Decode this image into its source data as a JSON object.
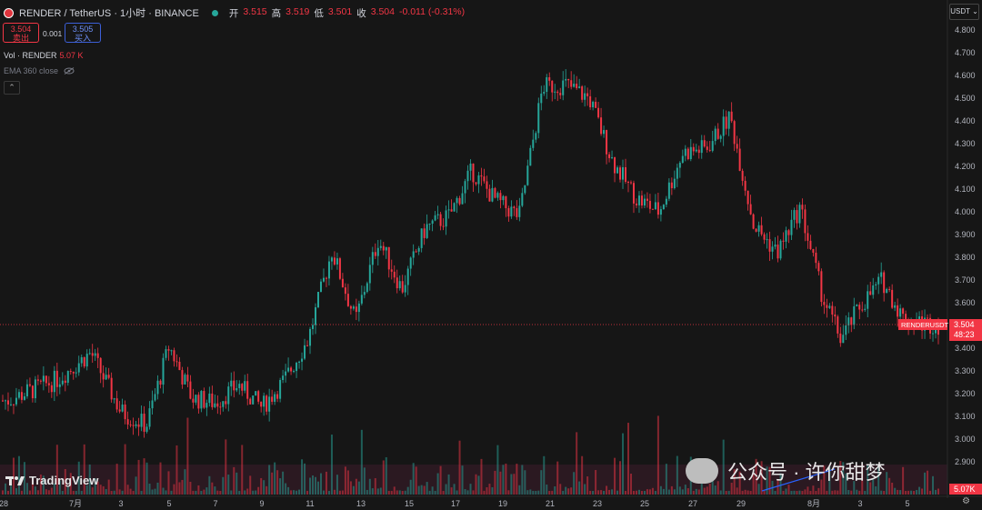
{
  "header": {
    "symbol": "RENDER / TetherUS · 1小时 · BINANCE",
    "open_label": "开",
    "open_value": "3.515",
    "high_label": "高",
    "high_value": "3.519",
    "low_label": "低",
    "low_value": "3.501",
    "close_label": "收",
    "close_value": "3.504",
    "change": "-0.011 (-0.31%)"
  },
  "trade": {
    "sell_price": "3.504",
    "sell_label": "卖出",
    "spread": "0.001",
    "buy_price": "3.505",
    "buy_label": "买入"
  },
  "indicators": {
    "vol_label": "Vol · RENDER",
    "vol_value": "5.07 K",
    "ema_label": "EMA 360 close"
  },
  "currency_button": "USDT ⌄",
  "price_axis": {
    "ticks": [
      "4.800",
      "4.700",
      "4.600",
      "4.500",
      "4.400",
      "4.300",
      "4.200",
      "4.100",
      "4.000",
      "3.900",
      "3.800",
      "3.700",
      "3.600",
      "3.500",
      "3.400",
      "3.300",
      "3.200",
      "3.100",
      "3.000",
      "2.900"
    ],
    "symbol_tag": "RENDERUSDT",
    "last_price": "3.504",
    "countdown": "48:23",
    "volume_tag": "5.07K"
  },
  "time_axis": [
    "28",
    "7月",
    "3",
    "5",
    "7",
    "9",
    "11",
    "13",
    "15",
    "17",
    "19",
    "21",
    "23",
    "25",
    "27",
    "29",
    "8月",
    "3",
    "5"
  ],
  "branding": "TradingView",
  "watermark": "公众号 · 许你甜梦",
  "colors": {
    "up": "#26a69a",
    "down": "#f23645",
    "background": "#161616"
  },
  "chart_data": {
    "type": "candlestick",
    "title": "RENDER / TetherUS · 1小时 · BINANCE",
    "x": [
      "6/28",
      "6/30",
      "7/1",
      "7/2",
      "7/3",
      "7/4",
      "7/5",
      "7/6",
      "7/7",
      "7/8",
      "7/9",
      "7/10",
      "7/11",
      "7/12",
      "7/13",
      "7/14",
      "7/15",
      "7/16",
      "7/17",
      "7/18",
      "7/19",
      "7/20",
      "7/21",
      "7/22",
      "7/23",
      "7/24",
      "7/25",
      "7/26",
      "7/27",
      "7/28",
      "7/29",
      "7/30",
      "7/31",
      "8/1",
      "8/2",
      "8/3",
      "8/4",
      "8/5",
      "8/6"
    ],
    "y": [
      3.17,
      3.26,
      3.38,
      3.12,
      3.06,
      3.41,
      3.18,
      3.16,
      3.24,
      3.14,
      3.26,
      3.44,
      3.83,
      3.52,
      3.88,
      3.66,
      3.93,
      3.98,
      4.18,
      4.05,
      3.98,
      4.55,
      4.56,
      4.5,
      4.22,
      4.06,
      4.0,
      4.26,
      4.28,
      4.42,
      3.94,
      3.82,
      4.02,
      3.62,
      3.44,
      3.58,
      3.7,
      3.52,
      3.504
    ],
    "ylim": [
      2.87,
      4.83
    ],
    "last_price": 3.504
  }
}
